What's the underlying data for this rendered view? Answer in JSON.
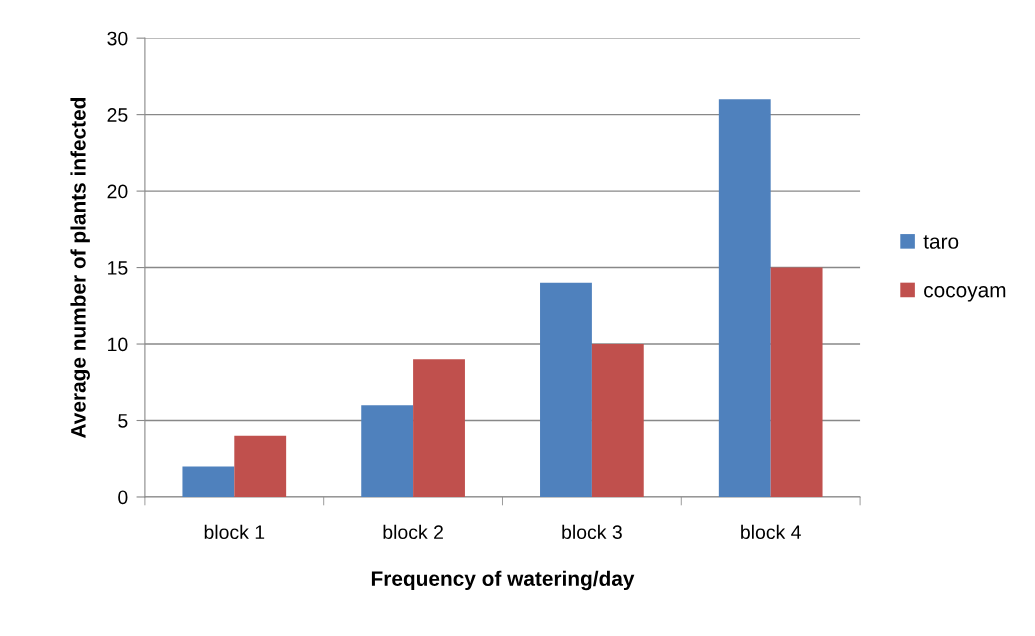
{
  "chart_data": {
    "type": "bar",
    "xlabel": "Frequency of watering/day",
    "ylabel": "Average number of plants infected",
    "categories": [
      "block 1",
      "block 2",
      "block 3",
      "block 4"
    ],
    "series": [
      {
        "name": "taro",
        "color": "#4f81bd",
        "values": [
          2,
          6,
          14,
          26
        ]
      },
      {
        "name": "cocoyam",
        "color": "#c0504d",
        "values": [
          4,
          9,
          10,
          15
        ]
      }
    ],
    "ylim": [
      0,
      30
    ],
    "yticks": [
      0,
      5,
      10,
      15,
      20,
      25,
      30
    ],
    "grid": "y",
    "legend": "right"
  }
}
